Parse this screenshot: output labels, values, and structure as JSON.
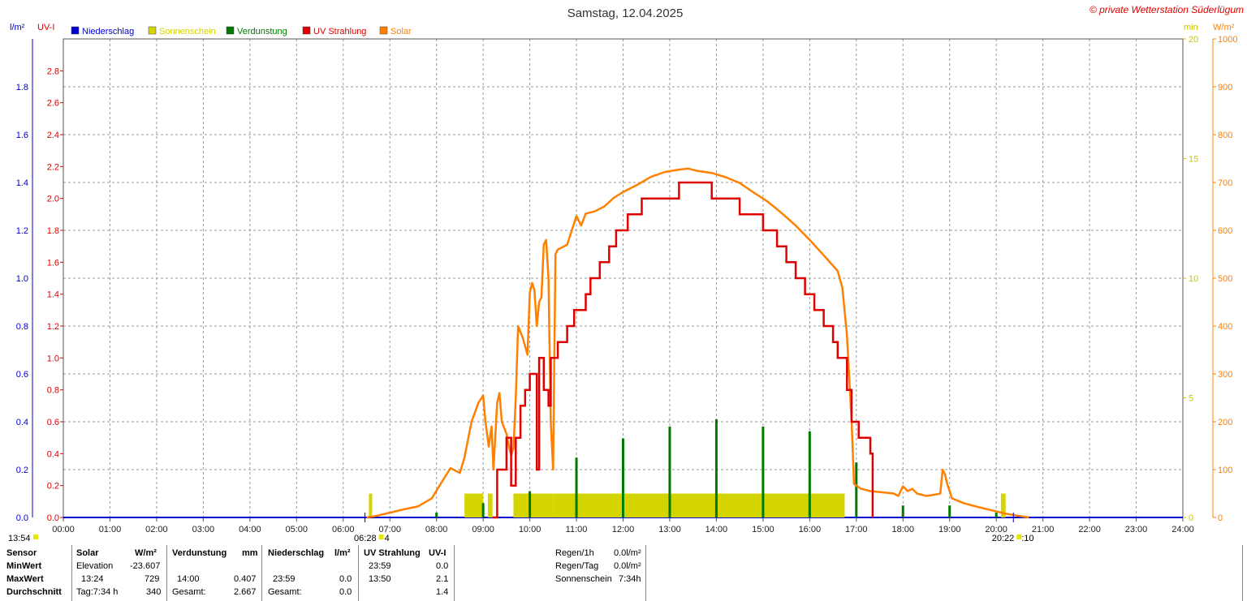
{
  "chart_data": {
    "type": "line",
    "title": "Samstag, 12.04.2025",
    "copyright": "© private Wetterstation Süderlügum",
    "left_unit_1": "l/m²",
    "left_unit_2": "UV-I",
    "right_unit_1": "min",
    "right_unit_2": "W/m²",
    "legend": [
      {
        "name": "Niederschlag",
        "color": "#0000d0"
      },
      {
        "name": "Sonnenschein",
        "color": "#d4d400"
      },
      {
        "name": "Verdunstung",
        "color": "#007a00"
      },
      {
        "name": "UV Strahlung",
        "color": "#e00000"
      },
      {
        "name": "Solar",
        "color": "#ff8000"
      }
    ],
    "x_ticks": [
      "00:00",
      "01:00",
      "02:00",
      "03:00",
      "04:00",
      "05:00",
      "06:00",
      "07:00",
      "08:00",
      "09:00",
      "10:00",
      "11:00",
      "12:00",
      "13:00",
      "14:00",
      "15:00",
      "16:00",
      "17:00",
      "18:00",
      "19:00",
      "20:00",
      "21:00",
      "22:00",
      "23:00",
      "24:00"
    ],
    "xlim": [
      0,
      24
    ],
    "y_precip": {
      "range": [
        0,
        2.0
      ],
      "ticks": [
        "0.0",
        "0.2",
        "0.4",
        "0.6",
        "0.8",
        "1.0",
        "1.2",
        "1.4",
        "1.6",
        "1.8"
      ]
    },
    "y_uv": {
      "range": [
        0,
        3.0
      ],
      "ticks": [
        "0.0",
        "0.2",
        "0.4",
        "0.6",
        "0.8",
        "1.0",
        "1.2",
        "1.4",
        "1.6",
        "1.8",
        "2.0",
        "2.2",
        "2.4",
        "2.6",
        "2.8"
      ]
    },
    "y_sun": {
      "range": [
        0,
        20
      ],
      "ticks": [
        "0",
        "5",
        "10",
        "15",
        "20"
      ]
    },
    "y_solar": {
      "range": [
        0,
        1000
      ],
      "ticks": [
        "0",
        "100",
        "200",
        "300",
        "400",
        "500",
        "600",
        "700",
        "800",
        "900",
        "1000"
      ]
    },
    "sunrise": {
      "time": "06:28",
      "label": "06:28",
      "mark": "4"
    },
    "sunset": {
      "time": "20:22",
      "label": "20:22",
      "mark": ":10"
    },
    "left_corner_label": "13:54",
    "series": [
      {
        "name": "Solar",
        "axis": "solar",
        "points": [
          [
            6.5,
            0
          ],
          [
            6.7,
            3
          ],
          [
            7.0,
            10
          ],
          [
            7.3,
            17
          ],
          [
            7.6,
            23
          ],
          [
            7.9,
            40
          ],
          [
            8.1,
            72
          ],
          [
            8.3,
            103
          ],
          [
            8.5,
            93
          ],
          [
            8.6,
            125
          ],
          [
            8.75,
            200
          ],
          [
            8.9,
            240
          ],
          [
            9.0,
            255
          ],
          [
            9.05,
            200
          ],
          [
            9.12,
            148
          ],
          [
            9.18,
            190
          ],
          [
            9.22,
            100
          ],
          [
            9.3,
            240
          ],
          [
            9.35,
            260
          ],
          [
            9.4,
            200
          ],
          [
            9.5,
            175
          ],
          [
            9.55,
            150
          ],
          [
            9.6,
            130
          ],
          [
            9.65,
            145
          ],
          [
            9.7,
            250
          ],
          [
            9.75,
            400
          ],
          [
            9.85,
            375
          ],
          [
            9.95,
            340
          ],
          [
            10.0,
            470
          ],
          [
            10.05,
            490
          ],
          [
            10.1,
            475
          ],
          [
            10.15,
            400
          ],
          [
            10.2,
            450
          ],
          [
            10.25,
            460
          ],
          [
            10.3,
            570
          ],
          [
            10.35,
            580
          ],
          [
            10.4,
            500
          ],
          [
            10.45,
            200
          ],
          [
            10.5,
            100
          ],
          [
            10.55,
            550
          ],
          [
            10.6,
            560
          ],
          [
            10.7,
            565
          ],
          [
            10.8,
            570
          ],
          [
            10.9,
            600
          ],
          [
            11.0,
            630
          ],
          [
            11.1,
            610
          ],
          [
            11.2,
            635
          ],
          [
            11.4,
            640
          ],
          [
            11.6,
            650
          ],
          [
            11.8,
            668
          ],
          [
            12.0,
            680
          ],
          [
            12.3,
            695
          ],
          [
            12.6,
            712
          ],
          [
            12.9,
            722
          ],
          [
            13.2,
            727
          ],
          [
            13.4,
            729
          ],
          [
            13.6,
            724
          ],
          [
            13.9,
            720
          ],
          [
            14.2,
            711
          ],
          [
            14.5,
            699
          ],
          [
            14.8,
            679
          ],
          [
            15.1,
            660
          ],
          [
            15.4,
            636
          ],
          [
            15.7,
            610
          ],
          [
            16.0,
            580
          ],
          [
            16.3,
            548
          ],
          [
            16.6,
            515
          ],
          [
            16.7,
            480
          ],
          [
            16.8,
            380
          ],
          [
            16.9,
            200
          ],
          [
            16.95,
            70
          ],
          [
            17.1,
            60
          ],
          [
            17.3,
            55
          ],
          [
            17.6,
            52
          ],
          [
            17.8,
            50
          ],
          [
            17.9,
            45
          ],
          [
            18.0,
            65
          ],
          [
            18.1,
            55
          ],
          [
            18.2,
            60
          ],
          [
            18.3,
            50
          ],
          [
            18.5,
            45
          ],
          [
            18.7,
            48
          ],
          [
            18.8,
            50
          ],
          [
            18.85,
            100
          ],
          [
            18.9,
            90
          ],
          [
            18.95,
            70
          ],
          [
            19.05,
            40
          ],
          [
            19.3,
            30
          ],
          [
            19.6,
            22
          ],
          [
            19.9,
            15
          ],
          [
            20.2,
            8
          ],
          [
            20.5,
            3
          ],
          [
            20.7,
            0
          ]
        ]
      },
      {
        "name": "UV Strahlung",
        "axis": "uv",
        "points": [
          [
            9.2,
            0
          ],
          [
            9.3,
            0.3
          ],
          [
            9.5,
            0.5
          ],
          [
            9.6,
            0.2
          ],
          [
            9.7,
            0.5
          ],
          [
            9.8,
            0.7
          ],
          [
            9.9,
            0.8
          ],
          [
            10.0,
            0.9
          ],
          [
            10.1,
            0.9
          ],
          [
            10.15,
            0.3
          ],
          [
            10.2,
            1.0
          ],
          [
            10.3,
            0.8
          ],
          [
            10.4,
            0.7
          ],
          [
            10.45,
            1.0
          ],
          [
            10.6,
            1.1
          ],
          [
            10.8,
            1.2
          ],
          [
            10.95,
            1.3
          ],
          [
            11.2,
            1.4
          ],
          [
            11.3,
            1.5
          ],
          [
            11.5,
            1.6
          ],
          [
            11.7,
            1.7
          ],
          [
            11.85,
            1.8
          ],
          [
            12.1,
            1.9
          ],
          [
            12.4,
            2.0
          ],
          [
            13.0,
            2.0
          ],
          [
            13.2,
            2.1
          ],
          [
            13.8,
            2.1
          ],
          [
            13.9,
            2.0
          ],
          [
            14.4,
            2.0
          ],
          [
            14.5,
            1.9
          ],
          [
            14.9,
            1.9
          ],
          [
            15.0,
            1.8
          ],
          [
            15.2,
            1.8
          ],
          [
            15.3,
            1.7
          ],
          [
            15.5,
            1.6
          ],
          [
            15.7,
            1.5
          ],
          [
            15.9,
            1.4
          ],
          [
            16.1,
            1.3
          ],
          [
            16.3,
            1.2
          ],
          [
            16.5,
            1.1
          ],
          [
            16.6,
            1.0
          ],
          [
            16.8,
            0.8
          ],
          [
            16.9,
            0.6
          ],
          [
            17.05,
            0.5
          ],
          [
            17.3,
            0.4
          ],
          [
            17.35,
            0
          ]
        ]
      },
      {
        "name": "Sonnenschein",
        "axis": "sun",
        "bars": [
          [
            6.55,
            6.62,
            1
          ],
          [
            8.6,
            9.0,
            1
          ],
          [
            9.1,
            9.2,
            1
          ],
          [
            9.65,
            10.5,
            1
          ],
          [
            10.5,
            16.75,
            1
          ],
          [
            20.1,
            20.2,
            1
          ]
        ]
      },
      {
        "name": "Verdunstung",
        "axis": "precip",
        "spikes": [
          [
            8.0,
            0.02
          ],
          [
            9.0,
            0.06
          ],
          [
            10.0,
            0.11
          ],
          [
            11.0,
            0.25
          ],
          [
            12.0,
            0.33
          ],
          [
            13.0,
            0.38
          ],
          [
            14.0,
            0.41
          ],
          [
            15.0,
            0.38
          ],
          [
            16.0,
            0.36
          ],
          [
            17.0,
            0.23
          ],
          [
            18.0,
            0.05
          ],
          [
            19.0,
            0.05
          ],
          [
            20.0,
            0.02
          ]
        ]
      }
    ]
  },
  "stats": {
    "sensor_label": "Sensor",
    "minwert_label": "MinWert",
    "maxwert_label": "MaxWert",
    "durchschnitt_label": "Durchschnitt",
    "solar": {
      "head": "Solar",
      "unit": "W/m²",
      "min_time": "Elevation",
      "min_val": "-23.607",
      "max_time": "13:24",
      "max_val": "729",
      "avg_time": "Tag:7:34 h",
      "avg_val": "340"
    },
    "verdunstung": {
      "head": "Verdunstung",
      "unit": "mm",
      "max_time": "14:00",
      "max_val": "0.407",
      "avg_label": "Gesamt:",
      "avg_val": "2.667"
    },
    "niederschlag": {
      "head": "Niederschlag",
      "unit": "l/m²",
      "max_time": "23:59",
      "max_val": "0.0",
      "avg_label": "Gesamt:",
      "avg_val": "0.0"
    },
    "uv": {
      "head": "UV Strahlung",
      "unit": "UV-I",
      "min_time": "23:59",
      "min_val": "0.0",
      "max_time": "13:50",
      "max_val": "2.1",
      "avg_val": "1.4"
    },
    "extra": {
      "regen1h_label": "Regen/1h",
      "regen1h_val": "0.0l/m²",
      "regentag_label": "Regen/Tag",
      "regentag_val": "0.0l/m²",
      "sonne_label": "Sonnenschein",
      "sonne_val": "7:34h"
    }
  }
}
